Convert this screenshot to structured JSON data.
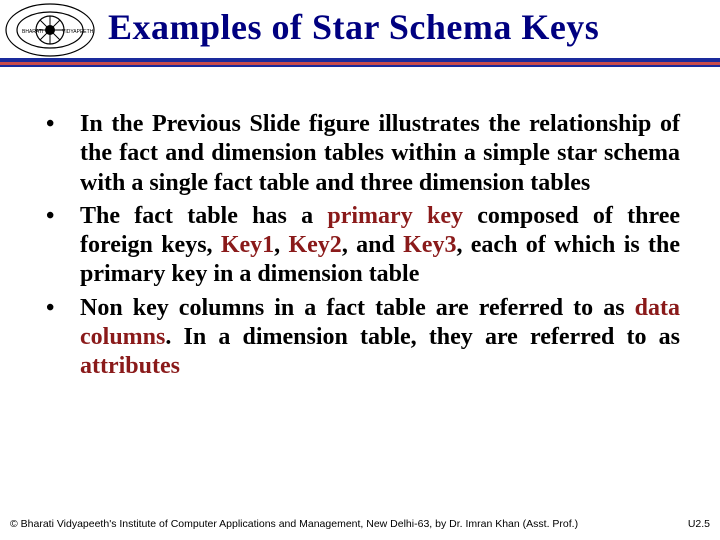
{
  "title": "Examples of Star Schema Keys",
  "title_color": "#000080",
  "underline_colors": [
    "#1a2a9c",
    "#c94a4a",
    "#1a2a9c"
  ],
  "logo": {
    "outer_text_left": "BHARATI",
    "outer_text_right": "VIDYAPEETH",
    "ring_color": "#000000",
    "inner_bg": "#ffffff"
  },
  "bullets": [
    {
      "segments": [
        {
          "text": "In the Previous Slide figure illustrates the relationship of the fact and dimension tables within a simple star schema with a single fact table and three dimension tables",
          "accent": false
        }
      ]
    },
    {
      "segments": [
        {
          "text": "The fact table has a ",
          "accent": false
        },
        {
          "text": "primary key ",
          "accent": true
        },
        {
          "text": "composed of three foreign keys, ",
          "accent": false
        },
        {
          "text": "Key1",
          "accent": true
        },
        {
          "text": ", ",
          "accent": false
        },
        {
          "text": "Key2",
          "accent": true
        },
        {
          "text": ", and ",
          "accent": false
        },
        {
          "text": "Key3",
          "accent": true
        },
        {
          "text": ", each of which is the primary key in a dimension table",
          "accent": false
        }
      ]
    },
    {
      "segments": [
        {
          "text": "Non key columns in a fact table are referred to as ",
          "accent": false
        },
        {
          "text": "data columns",
          "accent": true
        },
        {
          "text": ". In a dimension table, they are referred to as ",
          "accent": false
        },
        {
          "text": "attributes",
          "accent": true
        }
      ]
    }
  ],
  "accent_color": "#8a1a1a",
  "body_font_size_pt": 18,
  "footer": {
    "left": "© Bharati Vidyapeeth's Institute of Computer Applications and Management, New Delhi-63, by Dr. Imran Khan (Asst. Prof.)",
    "right": "U2.5"
  }
}
